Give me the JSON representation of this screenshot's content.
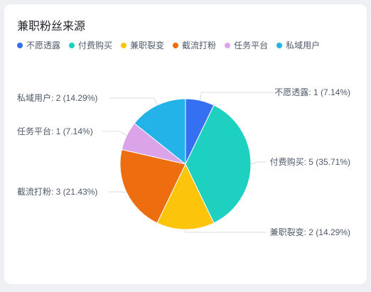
{
  "chart_data": {
    "type": "pie",
    "title": "兼职粉丝来源",
    "legend_position": "top-left",
    "slices": [
      {
        "name": "不愿透露",
        "value": 1,
        "percent": "7.14%",
        "color": "#3570f3"
      },
      {
        "name": "付费购买",
        "value": 5,
        "percent": "35.71%",
        "color": "#1ed0c0"
      },
      {
        "name": "兼职裂变",
        "value": 2,
        "percent": "14.29%",
        "color": "#fdc40c"
      },
      {
        "name": "截流打粉",
        "value": 3,
        "percent": "21.43%",
        "color": "#ee6d0f"
      },
      {
        "name": "任务平台",
        "value": 1,
        "percent": "7.14%",
        "color": "#dba3e8"
      },
      {
        "name": "私域用户",
        "value": 2,
        "percent": "14.29%",
        "color": "#24b3e8"
      }
    ]
  }
}
